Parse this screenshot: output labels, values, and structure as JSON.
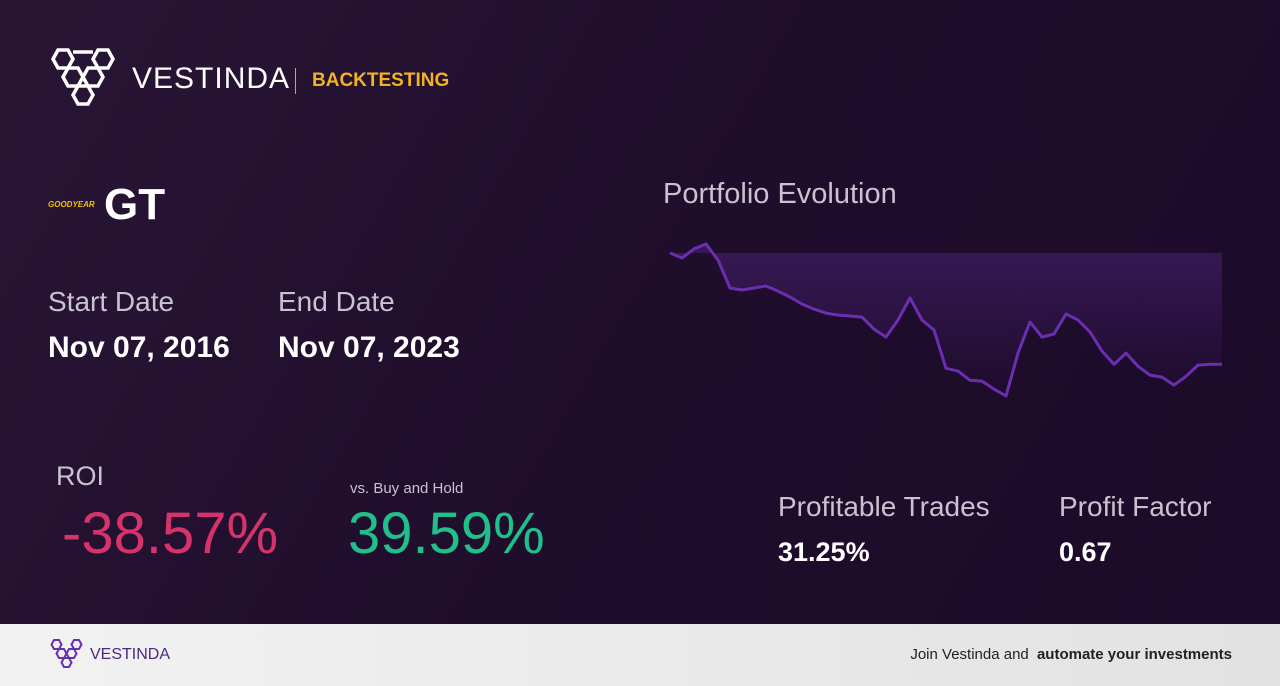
{
  "header": {
    "brand": "VESTINDA",
    "section": "BACKTESTING"
  },
  "asset": {
    "logo": "GOODYEAR",
    "ticker": "GT"
  },
  "dates": {
    "start_label": "Start Date",
    "start": "Nov 07, 2016",
    "end_label": "End Date",
    "end": "Nov 07, 2023"
  },
  "metrics": {
    "roi_label": "ROI",
    "roi": "-38.57%",
    "vs_label": "vs. Buy and Hold",
    "vs": "39.59%",
    "profitable_trades_label": "Profitable Trades",
    "profitable_trades": "31.25%",
    "profit_factor_label": "Profit Factor",
    "profit_factor": "0.67"
  },
  "chart_data": {
    "type": "line",
    "title": "Portfolio Evolution",
    "color": "#6a2fb0",
    "values": [
      100.4,
      98.6,
      101.8,
      103.5,
      97.9,
      88.1,
      87.4,
      88.1,
      88.8,
      87.0,
      84.9,
      82.5,
      80.7,
      79.3,
      78.6,
      78.3,
      77.9,
      73.7,
      70.9,
      76.9,
      84.6,
      76.9,
      73.4,
      60.0,
      59.0,
      55.8,
      55.5,
      52.7,
      50.3,
      65.3,
      76.2,
      70.9,
      72.0,
      79.0,
      76.9,
      72.7,
      66.0,
      61.4,
      65.3,
      60.7,
      57.6,
      56.9,
      54.1,
      57.2,
      61.1,
      61.4,
      61.4
    ]
  },
  "footer": {
    "brand": "VESTINDA",
    "cta": "Join Vestinda and",
    "cta_bold": "automate your investments"
  }
}
